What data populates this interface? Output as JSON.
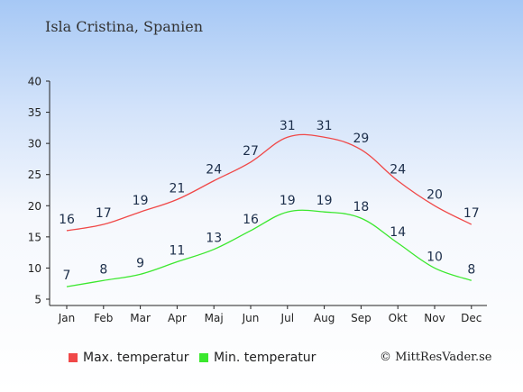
{
  "title": "Isla Cristina, Spanien",
  "copyright": "© MittResVader.se",
  "chart_data": {
    "type": "line",
    "categories": [
      "Jan",
      "Feb",
      "Mar",
      "Apr",
      "Maj",
      "Jun",
      "Jul",
      "Aug",
      "Sep",
      "Okt",
      "Nov",
      "Dec"
    ],
    "series": [
      {
        "name": "Max. temperatur",
        "color": "#f04848",
        "values": [
          16,
          17,
          19,
          21,
          24,
          27,
          31,
          31,
          29,
          24,
          20,
          17
        ]
      },
      {
        "name": "Min. temperatur",
        "color": "#3be82e",
        "values": [
          7,
          8,
          9,
          11,
          13,
          16,
          19,
          19,
          18,
          14,
          10,
          8
        ]
      }
    ],
    "ylim": [
      5,
      40
    ],
    "yticks": [
      5,
      10,
      15,
      20,
      25,
      30,
      35,
      40
    ],
    "grid": false,
    "legend": "bottom"
  }
}
